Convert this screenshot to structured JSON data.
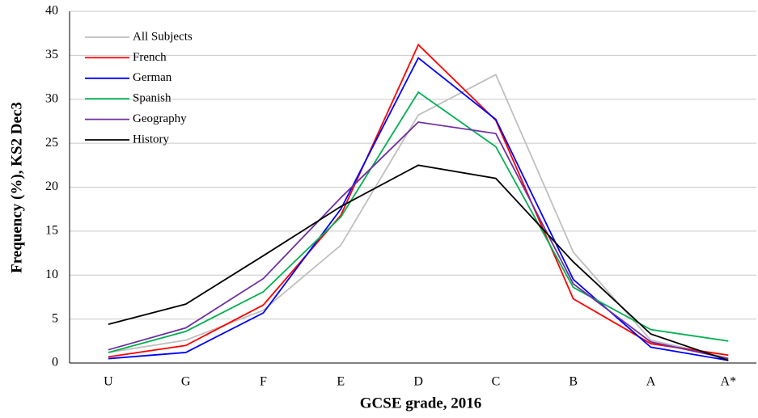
{
  "chart_data": {
    "type": "line",
    "x_label": "GCSE grade, 2016",
    "y_label": "Frequency (%), KS2 Dec3",
    "categories": [
      "U",
      "G",
      "F",
      "E",
      "D",
      "C",
      "B",
      "A",
      "A*"
    ],
    "series": [
      {
        "name": "All Subjects",
        "color": "#bfbfbf",
        "values": [
          1.2,
          2.6,
          6.0,
          13.4,
          28.2,
          32.8,
          12.6,
          2.6,
          0.6
        ]
      },
      {
        "name": "French",
        "color": "#ff0000",
        "values": [
          0.7,
          2.0,
          6.6,
          16.8,
          36.2,
          27.6,
          7.3,
          2.2,
          0.9
        ]
      },
      {
        "name": "German",
        "color": "#0000ff",
        "values": [
          0.5,
          1.2,
          5.7,
          17.5,
          34.7,
          27.7,
          9.5,
          1.8,
          0.3
        ]
      },
      {
        "name": "Spanish",
        "color": "#00b050",
        "values": [
          1.2,
          3.6,
          8.1,
          16.6,
          30.8,
          24.6,
          8.6,
          3.8,
          2.5
        ]
      },
      {
        "name": "Geography",
        "color": "#7030a0",
        "values": [
          1.5,
          4.0,
          9.6,
          18.8,
          27.4,
          26.1,
          9.0,
          2.4,
          0.5
        ]
      },
      {
        "name": "History",
        "color": "#000000",
        "values": [
          4.4,
          6.7,
          12.2,
          17.8,
          22.5,
          21.0,
          11.5,
          3.3,
          0.3
        ]
      }
    ],
    "ylim": [
      0,
      40
    ],
    "yticks": [
      0,
      5,
      10,
      15,
      20,
      25,
      30,
      35,
      40
    ],
    "grid": true,
    "legend": "upper-left"
  }
}
